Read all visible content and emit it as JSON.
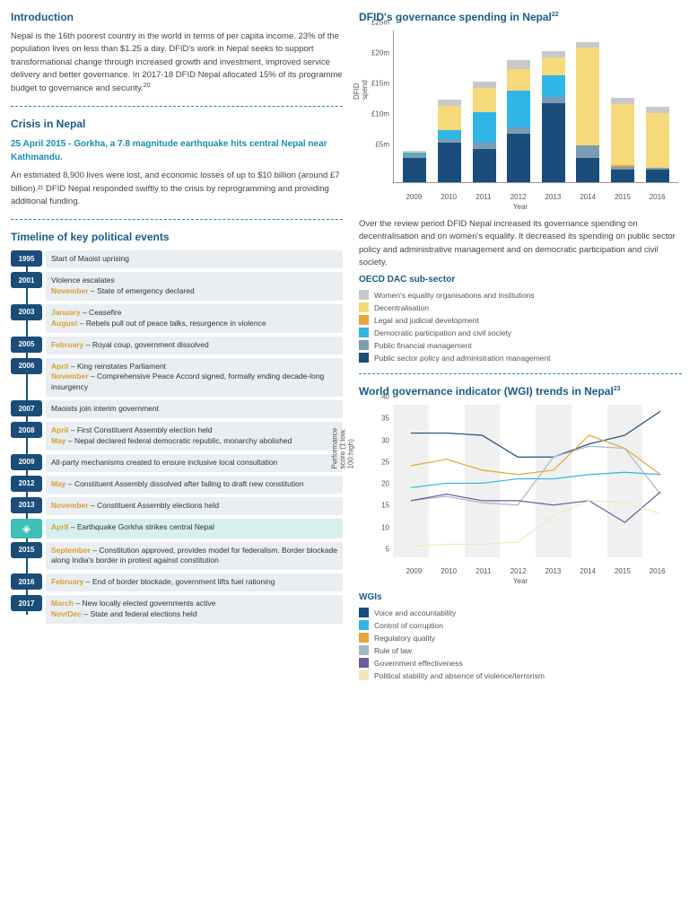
{
  "intro": {
    "title": "Introduction",
    "body": "Nepal is the 16th poorest country in the world in terms of per capita income. 23% of the population lives on less than $1.25 a day. DFID's work in Nepal seeks to support transformational change through increased growth and investment, improved service delivery and better governance. In 2017-18 DFID Nepal allocated 15% of its programme budget to governance and security.",
    "note": "20"
  },
  "crisis": {
    "title": "Crisis in Nepal",
    "sub": "25 April 2015 - Gorkha, a 7.8 magnitude earthquake hits central Nepal near Kathmandu.",
    "body": "An estimated 8,900 lives were lost, and economic losses of up to $10 billion (around £7 billion).²¹ DFID Nepal responded swiftly to the crisis by reprogramming and providing additional funding."
  },
  "timeline": {
    "title": "Timeline of key political events",
    "rows": [
      {
        "year": "1995",
        "items": [
          {
            "text": "Start of Maoist uprising"
          }
        ]
      },
      {
        "year": "2001",
        "items": [
          {
            "text": "Violence escalates"
          },
          {
            "month": "November",
            "text": " – State of emergency declared"
          }
        ]
      },
      {
        "year": "2003",
        "items": [
          {
            "month": "January",
            "text": " – Ceasefire"
          },
          {
            "month": "August",
            "text": " – Rebels pull out of peace talks, resurgence in violence"
          }
        ]
      },
      {
        "year": "2005",
        "items": [
          {
            "month": "February",
            "text": " – Royal coup, government dissolved"
          }
        ]
      },
      {
        "year": "2006",
        "items": [
          {
            "month": "April",
            "text": " – King reinstates Parliament"
          },
          {
            "month": "November",
            "text": " – Comprehensive Peace Accord signed, formally ending decade-long insurgency"
          }
        ]
      },
      {
        "year": "2007",
        "items": [
          {
            "text": "Maoists join interim government"
          }
        ]
      },
      {
        "year": "2008",
        "items": [
          {
            "month": "April",
            "text": " – First Constituent Assembly election held"
          },
          {
            "month": "May",
            "text": " – Nepal declared federal democratic republic, monarchy abolished"
          }
        ]
      },
      {
        "year": "2009",
        "items": [
          {
            "text": "All-party mechanisms created to ensure inclusive local consultation"
          }
        ]
      },
      {
        "year": "2012",
        "items": [
          {
            "month": "May",
            "text": " – Constituent Assembly dissolved after failing to draft new constitution"
          }
        ]
      },
      {
        "year": "2013",
        "items": [
          {
            "month": "November",
            "text": " – Constituent Assembly elections held"
          }
        ]
      },
      {
        "year": "quake",
        "quake": true,
        "items": [
          {
            "month": "April",
            "text": " – Earthquake Gorkha strikes central Nepal"
          }
        ]
      },
      {
        "year": "2015",
        "items": [
          {
            "month": "September",
            "text": " – Constitution approved, provides model for federalism. Border blockade along India's border in protest against constitution"
          }
        ]
      },
      {
        "year": "2016",
        "items": [
          {
            "month": "February",
            "text": " – End of border blockade, government lifts fuel rationing"
          }
        ]
      },
      {
        "year": "2017",
        "items": [
          {
            "month": "March",
            "text": " – New locally elected governments active"
          },
          {
            "month": "Nov/Dec",
            "text": " – State and federal elections held"
          }
        ]
      }
    ]
  },
  "barChart": {
    "title": "DFID's governance spending in Nepal",
    "note": "22",
    "yLabel": "DFID spend",
    "xLabel": "Year",
    "ymax": 25,
    "yticks": [
      "£5m",
      "£10m",
      "£15m",
      "£20m",
      "£25m"
    ],
    "years": [
      "2009",
      "2010",
      "2011",
      "2012",
      "2013",
      "2014",
      "2015",
      "2016"
    ],
    "caption": "Over the review period DFID Nepal increased its governance spending on decentralisation and on women's equality. It decreased its spending on public sector policy and administrative management and on democratic participation and civil society.",
    "colors": {
      "womens": "#c9c9c9",
      "decentral": "#f5d97a",
      "legal": "#e8a636",
      "democratic": "#2fb5e6",
      "pfm": "#7a9cb5",
      "public": "#1a4d7a"
    },
    "series": [
      {
        "public": 4,
        "pfm": 0.5,
        "democratic": 0.3,
        "legal": 0,
        "decentral": 0.2,
        "womens": 0.2
      },
      {
        "public": 6.5,
        "pfm": 0.5,
        "democratic": 1.5,
        "legal": 0,
        "decentral": 4,
        "womens": 1
      },
      {
        "public": 5.5,
        "pfm": 1,
        "democratic": 5,
        "legal": 0,
        "decentral": 4,
        "womens": 1
      },
      {
        "public": 8,
        "pfm": 1,
        "democratic": 6,
        "legal": 0,
        "decentral": 3.5,
        "womens": 1.5
      },
      {
        "public": 13,
        "pfm": 1,
        "democratic": 3.5,
        "legal": 0,
        "decentral": 3,
        "womens": 1
      },
      {
        "public": 4,
        "pfm": 2,
        "democratic": 0,
        "legal": 0,
        "decentral": 16,
        "womens": 1
      },
      {
        "public": 2,
        "pfm": 0.5,
        "democratic": 0,
        "legal": 0.3,
        "decentral": 10,
        "womens": 1
      },
      {
        "public": 2,
        "pfm": 0.3,
        "democratic": 0,
        "legal": 0,
        "decentral": 9,
        "womens": 1
      }
    ],
    "legendTitle": "OECD DAC sub-sector",
    "legend": [
      {
        "key": "womens",
        "label": "Women's equality organisations and institutions"
      },
      {
        "key": "decentral",
        "label": "Decentralisation"
      },
      {
        "key": "legal",
        "label": "Legal and judicial development"
      },
      {
        "key": "democratic",
        "label": "Democratic participation and civil society"
      },
      {
        "key": "pfm",
        "label": "Public financial management"
      },
      {
        "key": "public",
        "label": "Public sector policy and administration management"
      }
    ]
  },
  "lineChart": {
    "title": "World governance indicator (WGI) trends in Nepal",
    "note": "23",
    "yLabel": "Performance score (1:low, 100:high)",
    "xLabel": "Year",
    "ymin": 5,
    "ymax": 40,
    "yticks": [
      5,
      10,
      15,
      20,
      25,
      30,
      35,
      40
    ],
    "years": [
      "2009",
      "2010",
      "2011",
      "2012",
      "2013",
      "2014",
      "2015",
      "2016"
    ],
    "colors": {
      "voice": "#1a4d7a",
      "control": "#2fb5e6",
      "regulatory": "#e8a636",
      "rule": "#a8b8c4",
      "govt": "#6b5d9e",
      "political": "#f5e6b8"
    },
    "series": {
      "voice": [
        33.5,
        33.5,
        33,
        28,
        28,
        31,
        33,
        38.5
      ],
      "control": [
        21,
        22,
        22,
        23,
        23,
        24,
        24.5,
        24
      ],
      "regulatory": [
        26,
        27.5,
        25,
        24,
        25,
        33,
        30,
        24
      ],
      "rule": [
        18,
        19,
        17.5,
        17,
        28,
        30.5,
        30,
        19.5
      ],
      "govt": [
        18,
        19.5,
        18,
        18,
        17,
        18,
        13,
        20
      ],
      "political": [
        7.5,
        8,
        8,
        8.5,
        14.5,
        18,
        17.5,
        15
      ]
    },
    "legendTitle": "WGIs",
    "legend": [
      {
        "key": "voice",
        "label": "Voice and accountability"
      },
      {
        "key": "control",
        "label": "Control of corruption"
      },
      {
        "key": "regulatory",
        "label": "Regulatory quality"
      },
      {
        "key": "rule",
        "label": "Rule of law"
      },
      {
        "key": "govt",
        "label": "Government effectiveness"
      },
      {
        "key": "political",
        "label": "Political stability and absence of violence/terrorism"
      }
    ]
  }
}
